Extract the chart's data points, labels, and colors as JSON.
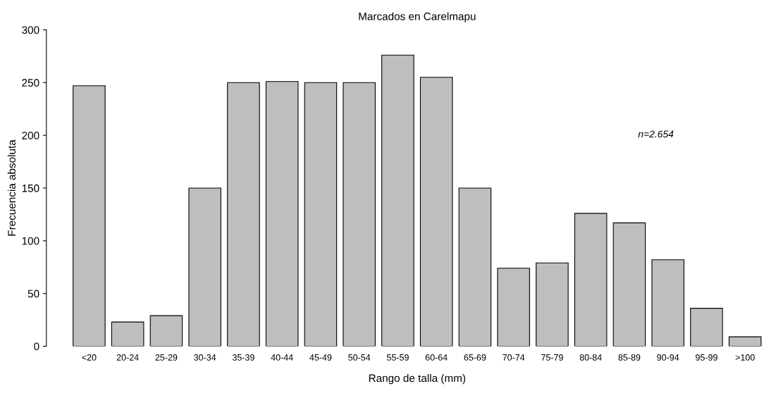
{
  "chart_data": {
    "type": "bar",
    "title": "Marcados en Carelmapu",
    "xlabel": "Rango de talla (mm)",
    "ylabel": "Frecuencia absoluta",
    "categories": [
      "<20",
      "20-24",
      "25-29",
      "30-34",
      "35-39",
      "40-44",
      "45-49",
      "50-54",
      "55-59",
      "60-64",
      "65-69",
      "70-74",
      "75-79",
      "80-84",
      "85-89",
      "90-94",
      "95-99",
      ">100"
    ],
    "values": [
      247,
      23,
      29,
      150,
      250,
      251,
      250,
      250,
      276,
      255,
      150,
      74,
      79,
      126,
      117,
      82,
      36,
      9
    ],
    "color": "#bebebe",
    "ylim": [
      0,
      300
    ],
    "yticks": [
      0,
      50,
      100,
      150,
      200,
      250,
      300
    ],
    "grid": false,
    "legend": false,
    "annotations": [
      "n=2.654"
    ]
  }
}
